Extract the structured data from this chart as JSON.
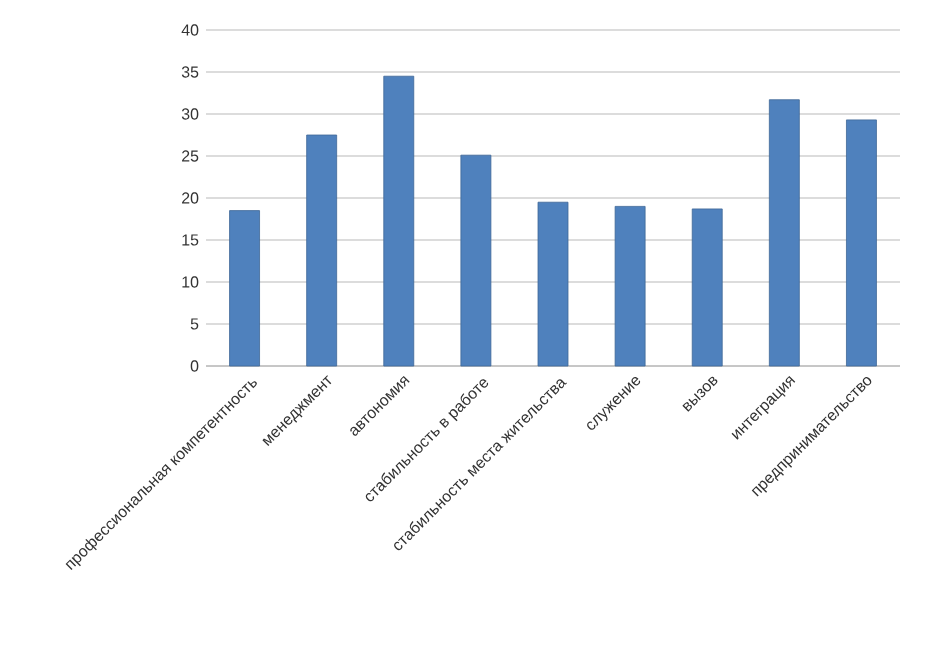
{
  "chart_data": {
    "type": "bar",
    "categories": [
      "профессиональная компетентность",
      "менеджмент",
      "автономия",
      "стабильность в работе",
      "стабильность места жительства",
      "служение",
      "вызов",
      "интеграция",
      "предпринимательство"
    ],
    "values": [
      18.5,
      27.5,
      34.5,
      25.1,
      19.5,
      19.0,
      18.7,
      31.7,
      29.3
    ],
    "color": "#4f81bd",
    "ylim": [
      0,
      40
    ],
    "yticks": [
      0,
      5,
      10,
      15,
      20,
      25,
      30,
      35,
      40
    ],
    "grid": "y"
  }
}
